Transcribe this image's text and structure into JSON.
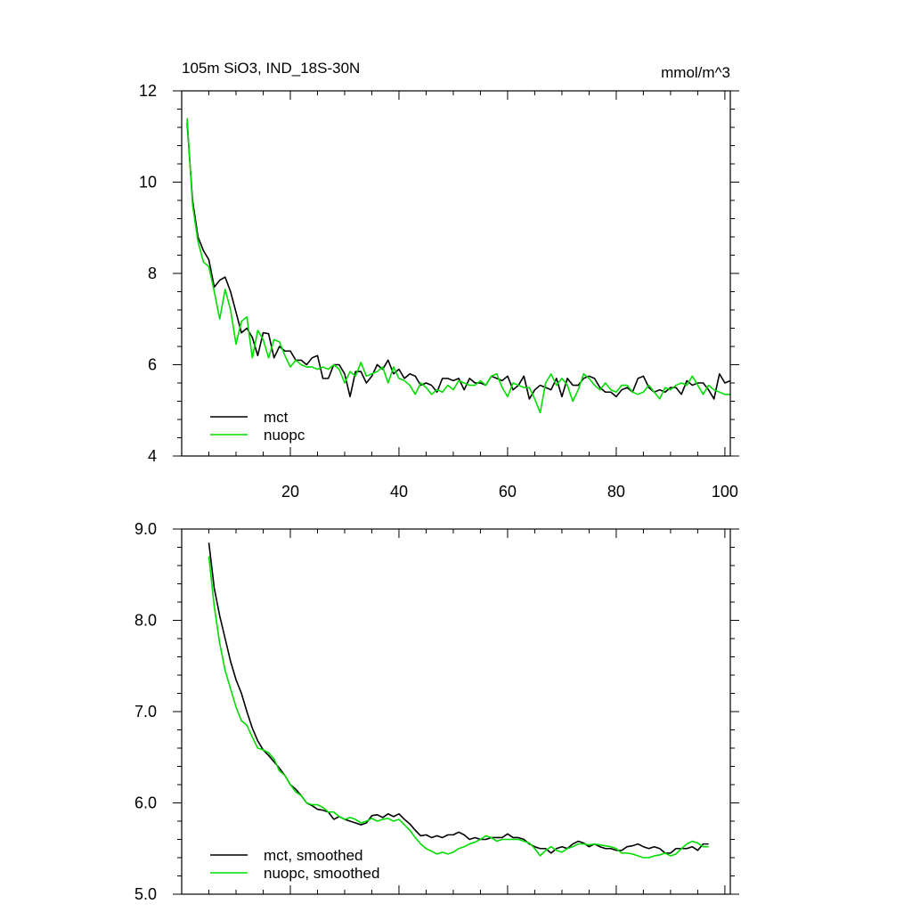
{
  "colors": {
    "mct": "#000000",
    "nuopc": "#00dd00",
    "frame": "#000000"
  },
  "chart_data": [
    {
      "type": "line",
      "title": "105m SiO3, IND_18S-30N",
      "units": "mmol/m^3",
      "xlim": [
        0,
        101
      ],
      "ylim": [
        4,
        12
      ],
      "x_ticks": [
        20,
        40,
        60,
        80,
        100
      ],
      "x_tick_labels": [
        "20",
        "40",
        "60",
        "80",
        "100"
      ],
      "y_ticks": [
        4,
        6,
        8,
        10,
        12
      ],
      "y_tick_labels": [
        "4",
        "6",
        "8",
        "10",
        "12"
      ],
      "legend_position": "bottom-left",
      "x": [
        1,
        2,
        3,
        4,
        5,
        6,
        7,
        8,
        9,
        10,
        11,
        12,
        13,
        14,
        15,
        16,
        17,
        18,
        19,
        20,
        21,
        22,
        23,
        24,
        25,
        26,
        27,
        28,
        29,
        30,
        31,
        32,
        33,
        34,
        35,
        36,
        37,
        38,
        39,
        40,
        41,
        42,
        43,
        44,
        45,
        46,
        47,
        48,
        49,
        50,
        51,
        52,
        53,
        54,
        55,
        56,
        57,
        58,
        59,
        60,
        61,
        62,
        63,
        64,
        65,
        66,
        67,
        68,
        69,
        70,
        71,
        72,
        73,
        74,
        75,
        76,
        77,
        78,
        79,
        80,
        81,
        82,
        83,
        84,
        85,
        86,
        87,
        88,
        89,
        90,
        91,
        92,
        93,
        94,
        95,
        96,
        97,
        98,
        99,
        100,
        101
      ],
      "series": [
        {
          "name": "mct",
          "color": "#000000",
          "values": [
            11.3,
            9.6,
            8.8,
            8.5,
            8.3,
            7.7,
            7.85,
            7.92,
            7.6,
            7.15,
            6.7,
            6.8,
            6.6,
            6.2,
            6.7,
            6.68,
            6.15,
            6.4,
            6.3,
            6.3,
            6.1,
            6.1,
            6.0,
            6.15,
            6.2,
            5.7,
            5.7,
            6.0,
            6.0,
            5.8,
            5.3,
            5.85,
            5.85,
            5.6,
            5.75,
            6.0,
            5.9,
            6.1,
            5.8,
            5.9,
            5.7,
            5.8,
            5.75,
            5.55,
            5.6,
            5.55,
            5.4,
            5.7,
            5.7,
            5.65,
            5.7,
            5.45,
            5.7,
            5.6,
            5.6,
            5.55,
            5.75,
            5.7,
            5.65,
            5.75,
            5.45,
            5.55,
            5.75,
            5.25,
            5.45,
            5.55,
            5.5,
            5.45,
            5.7,
            5.3,
            5.7,
            5.55,
            5.55,
            5.7,
            5.75,
            5.7,
            5.5,
            5.4,
            5.4,
            5.3,
            5.45,
            5.5,
            5.4,
            5.7,
            5.75,
            5.5,
            5.4,
            5.45,
            5.4,
            5.5,
            5.5,
            5.35,
            5.65,
            5.55,
            5.6,
            5.6,
            5.45,
            5.25,
            5.8,
            5.6,
            5.65
          ]
        },
        {
          "name": "nuopc",
          "color": "#00dd00",
          "values": [
            11.4,
            9.5,
            8.7,
            8.25,
            8.15,
            7.6,
            7.0,
            7.65,
            7.2,
            6.45,
            6.95,
            7.05,
            6.15,
            6.75,
            6.55,
            6.15,
            6.55,
            6.5,
            6.2,
            5.95,
            6.1,
            6.0,
            5.95,
            5.95,
            5.9,
            5.95,
            5.9,
            6.0,
            5.9,
            5.6,
            5.85,
            5.75,
            6.05,
            5.75,
            5.8,
            5.85,
            5.95,
            5.6,
            5.95,
            5.7,
            5.65,
            5.55,
            5.35,
            5.6,
            5.5,
            5.35,
            5.45,
            5.4,
            5.55,
            5.45,
            5.65,
            5.6,
            5.55,
            5.55,
            5.65,
            5.55,
            5.75,
            5.8,
            5.5,
            5.3,
            5.6,
            5.55,
            5.5,
            5.5,
            5.25,
            4.95,
            5.6,
            5.8,
            5.55,
            5.7,
            5.55,
            5.2,
            5.45,
            5.8,
            5.7,
            5.55,
            5.45,
            5.6,
            5.45,
            5.4,
            5.55,
            5.55,
            5.4,
            5.35,
            5.4,
            5.55,
            5.4,
            5.25,
            5.5,
            5.45,
            5.55,
            5.6,
            5.55,
            5.75,
            5.55,
            5.35,
            5.55,
            5.45,
            5.4,
            5.35,
            5.35
          ]
        }
      ]
    },
    {
      "type": "line",
      "xlim": [
        0,
        101
      ],
      "ylim": [
        5.0,
        9.0
      ],
      "x_ticks": [
        20,
        40,
        60,
        80,
        100
      ],
      "y_ticks": [
        5.0,
        6.0,
        7.0,
        8.0,
        9.0
      ],
      "y_tick_labels": [
        "5.0",
        "6.0",
        "7.0",
        "8.0",
        "9.0"
      ],
      "legend_position": "bottom-left",
      "x": [
        5,
        6,
        7,
        8,
        9,
        10,
        11,
        12,
        13,
        14,
        15,
        16,
        17,
        18,
        19,
        20,
        21,
        22,
        23,
        24,
        25,
        26,
        27,
        28,
        29,
        30,
        31,
        32,
        33,
        34,
        35,
        36,
        37,
        38,
        39,
        40,
        41,
        42,
        43,
        44,
        45,
        46,
        47,
        48,
        49,
        50,
        51,
        52,
        53,
        54,
        55,
        56,
        57,
        58,
        59,
        60,
        61,
        62,
        63,
        64,
        65,
        66,
        67,
        68,
        69,
        70,
        71,
        72,
        73,
        74,
        75,
        76,
        77,
        78,
        79,
        80,
        81,
        82,
        83,
        84,
        85,
        86,
        87,
        88,
        89,
        90,
        91,
        92,
        93,
        94,
        95,
        96,
        97
      ],
      "series": [
        {
          "name": "mct, smoothed",
          "color": "#000000",
          "values": [
            8.85,
            8.35,
            8.05,
            7.8,
            7.55,
            7.35,
            7.2,
            7.0,
            6.82,
            6.68,
            6.58,
            6.52,
            6.45,
            6.38,
            6.3,
            6.2,
            6.15,
            6.08,
            6.0,
            5.97,
            5.93,
            5.92,
            5.9,
            5.82,
            5.85,
            5.82,
            5.8,
            5.78,
            5.76,
            5.78,
            5.86,
            5.87,
            5.84,
            5.88,
            5.85,
            5.88,
            5.82,
            5.77,
            5.7,
            5.64,
            5.65,
            5.62,
            5.64,
            5.62,
            5.65,
            5.65,
            5.68,
            5.65,
            5.6,
            5.62,
            5.6,
            5.6,
            5.62,
            5.62,
            5.62,
            5.66,
            5.62,
            5.62,
            5.6,
            5.55,
            5.52,
            5.5,
            5.5,
            5.45,
            5.5,
            5.52,
            5.5,
            5.55,
            5.58,
            5.56,
            5.52,
            5.55,
            5.52,
            5.5,
            5.5,
            5.48,
            5.48,
            5.52,
            5.53,
            5.55,
            5.52,
            5.5,
            5.52,
            5.5,
            5.45,
            5.45,
            5.5,
            5.5,
            5.5,
            5.52,
            5.48,
            5.55,
            5.55
          ]
        },
        {
          "name": "nuopc, smoothed",
          "color": "#00dd00",
          "values": [
            8.7,
            8.15,
            7.75,
            7.45,
            7.25,
            7.05,
            6.9,
            6.85,
            6.72,
            6.6,
            6.58,
            6.55,
            6.48,
            6.35,
            6.3,
            6.2,
            6.12,
            6.08,
            6.0,
            5.98,
            5.98,
            5.95,
            5.9,
            5.9,
            5.85,
            5.82,
            5.84,
            5.82,
            5.78,
            5.8,
            5.83,
            5.8,
            5.82,
            5.83,
            5.8,
            5.82,
            5.76,
            5.7,
            5.62,
            5.55,
            5.5,
            5.47,
            5.44,
            5.46,
            5.44,
            5.46,
            5.5,
            5.52,
            5.55,
            5.57,
            5.6,
            5.64,
            5.62,
            5.58,
            5.6,
            5.6,
            5.6,
            5.6,
            5.58,
            5.56,
            5.5,
            5.42,
            5.48,
            5.52,
            5.48,
            5.46,
            5.5,
            5.52,
            5.55,
            5.55,
            5.54,
            5.55,
            5.54,
            5.53,
            5.52,
            5.5,
            5.45,
            5.45,
            5.44,
            5.42,
            5.4,
            5.4,
            5.42,
            5.43,
            5.45,
            5.42,
            5.44,
            5.5,
            5.55,
            5.58,
            5.56,
            5.52,
            5.52
          ]
        }
      ]
    }
  ]
}
